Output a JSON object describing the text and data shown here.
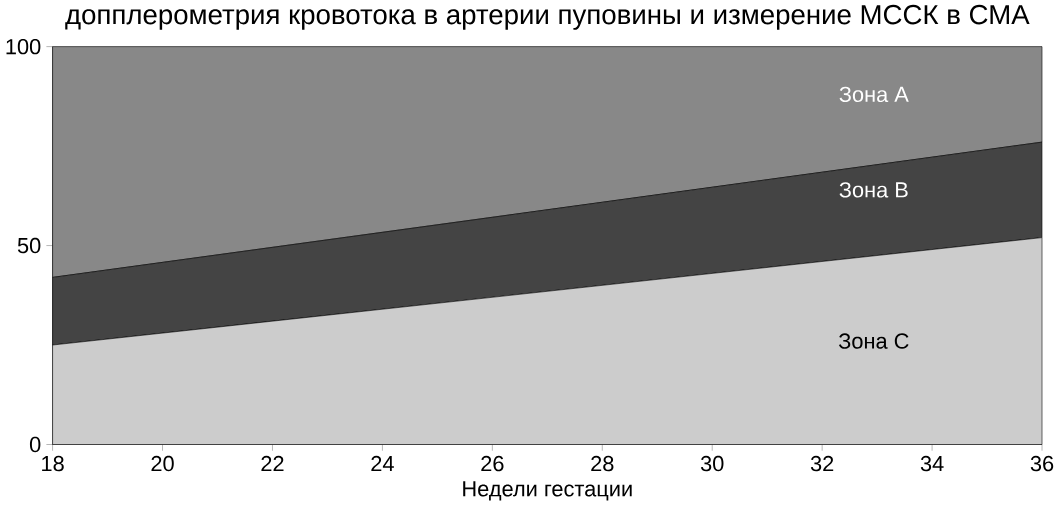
{
  "chart_data": {
    "type": "area",
    "title": "допплерометрия кровотока в артерии пуповины и измерение МССК в СМА",
    "xlabel": "Недели гестации",
    "stacked": true,
    "x": [
      18,
      36
    ],
    "series": [
      {
        "name": "Зона C",
        "color": "#cccccc",
        "values": [
          25,
          52
        ]
      },
      {
        "name": "Зона B",
        "color": "#444444",
        "values": [
          17,
          24
        ]
      },
      {
        "name": "Зона A",
        "color": "#888888",
        "values": [
          58,
          24
        ]
      }
    ],
    "xlim": [
      18,
      36
    ],
    "ylim": [
      0,
      100
    ],
    "xticks": [
      18,
      20,
      22,
      24,
      26,
      28,
      30,
      32,
      34,
      36
    ],
    "yticks": [
      0,
      50,
      100
    ]
  }
}
